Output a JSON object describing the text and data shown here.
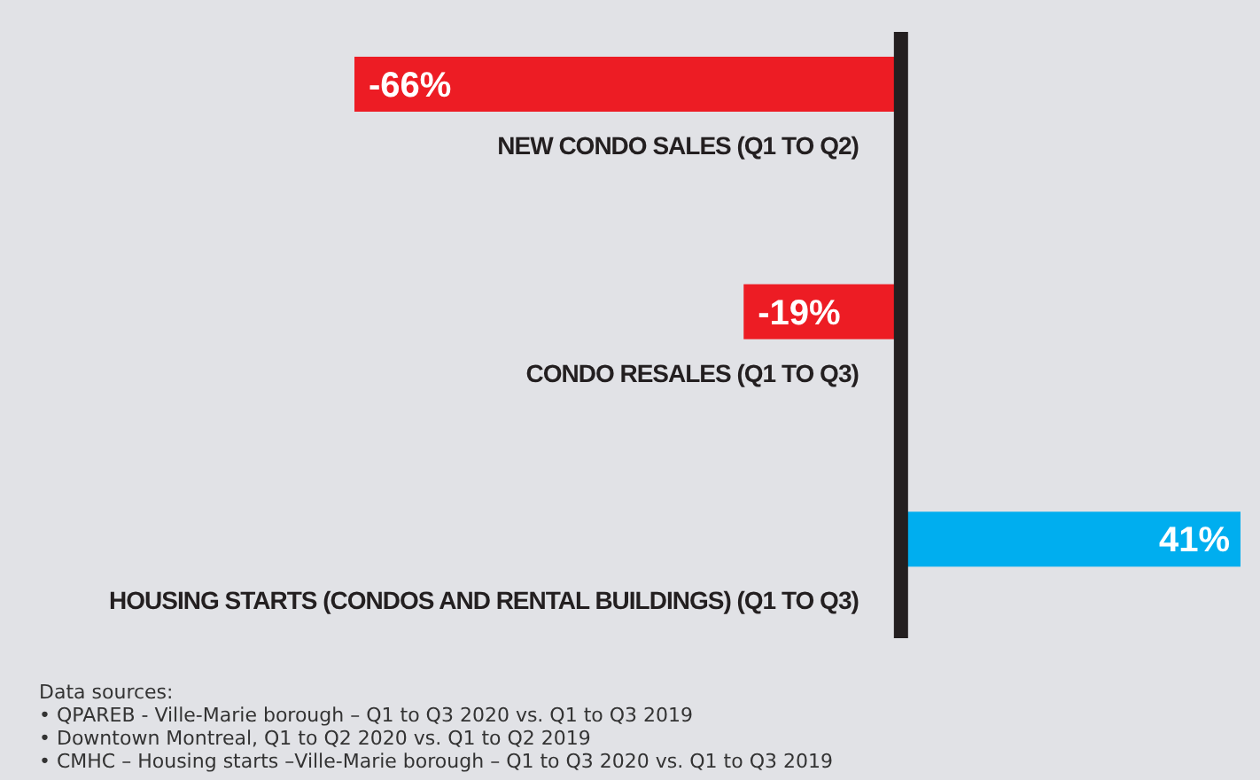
{
  "chart_data": {
    "type": "bar",
    "orientation": "horizontal",
    "categories": [
      "NEW CONDO SALES (Q1 TO Q2)",
      "CONDO RESALES (Q1 TO Q3)",
      "HOUSING STARTS (CONDOS AND RENTAL BUILDINGS) (Q1 TO Q3)"
    ],
    "values": [
      -66,
      -19,
      41
    ],
    "colors": [
      "#ed1c24",
      "#ed1c24",
      "#00aeef"
    ],
    "value_labels": [
      "-66%",
      "-19%",
      "41%"
    ],
    "annotations": [
      "Data sources:",
      "• QPAREB - Ville-Marie borough – Q1 to Q3 2020 vs. Q1 to Q3 2019",
      "• Downtown Montreal, Q1 to Q2 2020 vs. Q1 to Q2 2019",
      "• CMHC – Housing starts –Ville-Marie borough – Q1 to Q3 2020 vs. Q1 to Q3 2019"
    ]
  }
}
